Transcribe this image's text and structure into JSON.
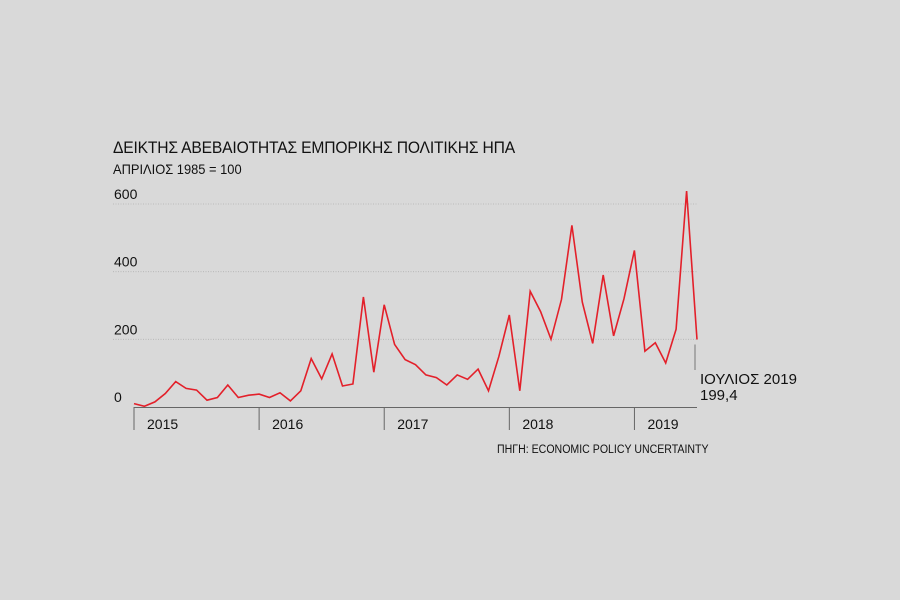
{
  "chart_data": {
    "type": "line",
    "title": "ΔΕΙΚΤΗΣ ΑΒΕΒΑΙΟΤΗΤΑΣ ΕΜΠΟΡΙΚΗΣ ΠΟΛΙΤΙΚΗΣ ΗΠΑ",
    "subtitle": "ΑΠΡΙΛΙΟΣ 1985  = 100",
    "source": "ΠΗΓΗ: ECONOMIC POLICY UNCERTAINTY",
    "ylim": [
      0,
      600
    ],
    "yticks": [
      0,
      200,
      400,
      600
    ],
    "grid": true,
    "line_color": "#e3202a",
    "x_start": "2015-01",
    "x_end": "2019-07",
    "years": [
      "2015",
      "2016",
      "2017",
      "2018",
      "2019"
    ],
    "series": [
      {
        "values": [
          10,
          2,
          15,
          40,
          75,
          55,
          50,
          20,
          28,
          65,
          28,
          35,
          38,
          28,
          42,
          18,
          48,
          143,
          83,
          157,
          62,
          68,
          325,
          103,
          302,
          185,
          140,
          125,
          95,
          87,
          65,
          95,
          82,
          112,
          48,
          150,
          272,
          48,
          342,
          282,
          200,
          318,
          537,
          310,
          188,
          390,
          210,
          320,
          463,
          165,
          190,
          130,
          230,
          638,
          199.4
        ]
      }
    ],
    "annotation": {
      "label": "ΙΟΥΛΙΟΣ 2019",
      "value": "199,4"
    }
  }
}
